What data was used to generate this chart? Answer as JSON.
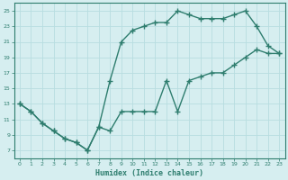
{
  "xlabel": "Humidex (Indice chaleur)",
  "xlim": [
    -0.5,
    23.5
  ],
  "ylim": [
    6,
    26
  ],
  "xticks": [
    0,
    1,
    2,
    3,
    4,
    5,
    6,
    7,
    8,
    9,
    10,
    11,
    12,
    13,
    14,
    15,
    16,
    17,
    18,
    19,
    20,
    21,
    22,
    23
  ],
  "yticks": [
    7,
    9,
    11,
    13,
    15,
    17,
    19,
    21,
    23,
    25
  ],
  "line1_x": [
    0,
    1,
    2,
    3,
    4,
    5,
    6,
    7,
    8,
    9,
    10,
    11,
    12,
    13,
    14,
    15,
    16,
    17,
    18,
    19,
    20,
    21,
    22,
    23
  ],
  "line1_y": [
    13,
    12,
    10.5,
    9.5,
    8.5,
    8,
    7,
    10,
    9.5,
    12,
    12,
    12,
    12,
    16,
    12,
    16,
    16.5,
    17,
    17,
    18,
    19,
    20,
    19.5,
    19.5
  ],
  "line2_x": [
    0,
    1,
    2,
    3,
    4,
    5,
    6,
    7,
    8,
    9,
    10,
    11,
    12,
    13,
    14,
    15,
    16,
    17,
    18,
    19,
    20,
    21,
    22,
    23
  ],
  "line2_y": [
    13,
    12,
    10.5,
    9.5,
    8.5,
    8,
    7,
    10,
    16,
    21,
    22.5,
    23,
    23.5,
    23.5,
    25,
    24.5,
    24,
    24,
    24,
    24.5,
    25,
    23,
    20.5,
    19.5
  ],
  "line_color": "#2e7d6e",
  "bg_color": "#d6eef0",
  "grid_color": "#b8dde0",
  "marker": "+",
  "marker_size": 5,
  "line_width": 1.0
}
